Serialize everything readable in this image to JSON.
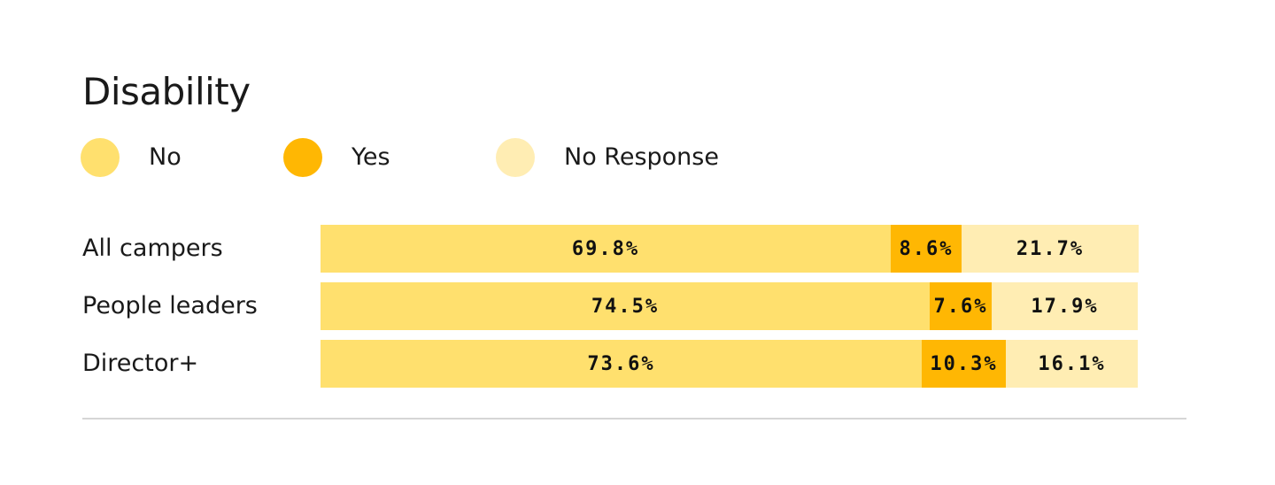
{
  "title": "Disability",
  "colors": {
    "no": "#FFE06E",
    "yes": "#FFB703",
    "no_response": "#FFEDB3"
  },
  "legend": [
    {
      "label": "No",
      "color": "#FFE06E"
    },
    {
      "label": "Yes",
      "color": "#FFB703"
    },
    {
      "label": "No Response",
      "color": "#FFEDB3"
    }
  ],
  "chart_data": {
    "type": "bar",
    "orientation": "horizontal",
    "stacked": true,
    "title": "Disability",
    "categories": [
      "All campers",
      "People leaders",
      "Director+"
    ],
    "series": [
      {
        "name": "No",
        "values": [
          69.8,
          74.5,
          73.6
        ],
        "labels": [
          "69.8%",
          "74.5%",
          "73.6%"
        ]
      },
      {
        "name": "Yes",
        "values": [
          8.6,
          7.6,
          10.3
        ],
        "labels": [
          "8.6%",
          "7.6%",
          "10.3%"
        ]
      },
      {
        "name": "No Response",
        "values": [
          21.7,
          17.9,
          16.1
        ],
        "labels": [
          "21.7%",
          "17.9%",
          "16.1%"
        ]
      }
    ],
    "xlim": [
      0,
      100
    ],
    "grid": false,
    "legend_position": "top-left"
  }
}
